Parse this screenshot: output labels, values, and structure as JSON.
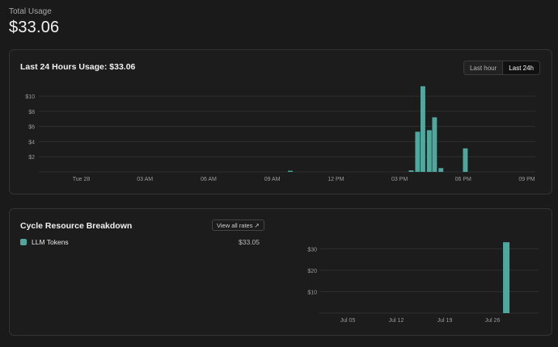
{
  "header": {
    "label": "Total Usage",
    "value": "$33.06"
  },
  "usage_card": {
    "title": "Last 24 Hours Usage: $33.06",
    "toggle": {
      "options": [
        "Last hour",
        "Last 24h"
      ],
      "active": "Last 24h"
    }
  },
  "breakdown_card": {
    "title": "Cycle Resource Breakdown",
    "view_rates_label": "View all rates",
    "resources": [
      {
        "name": "LLM Tokens",
        "value": "$33.05",
        "color": "#4fa89e"
      }
    ]
  },
  "colors": {
    "bar": "#4fa89e",
    "grid": "#2e2e2e",
    "tick": "#9a9a9a"
  },
  "chart_data": [
    {
      "type": "bar",
      "title": "",
      "x_tick_labels": [
        "Tue 28",
        "03 AM",
        "06 AM",
        "09 AM",
        "12 PM",
        "03 PM",
        "06 PM",
        "09 PM"
      ],
      "y_tick_labels": [
        "$2",
        "$4",
        "$6",
        "$8",
        "$10"
      ],
      "ylim": [
        0,
        11.5
      ],
      "x_unit": "hours since Tue 28 00:00",
      "xlim": [
        -2,
        21.4
      ],
      "bar_width_hours": 0.25,
      "points": [
        {
          "x": 9.85,
          "y": 0.15
        },
        {
          "x": 15.55,
          "y": 0.2
        },
        {
          "x": 15.85,
          "y": 5.3
        },
        {
          "x": 16.1,
          "y": 11.3
        },
        {
          "x": 16.4,
          "y": 5.5
        },
        {
          "x": 16.65,
          "y": 7.2
        },
        {
          "x": 16.95,
          "y": 0.5
        },
        {
          "x": 18.1,
          "y": 3.1
        }
      ]
    },
    {
      "type": "bar",
      "title": "",
      "x_tick_labels": [
        "Jul 05",
        "Jul 12",
        "Jul 19",
        "Jul 26"
      ],
      "y_tick_labels": [
        "$10",
        "$20",
        "$30"
      ],
      "ylim": [
        0,
        35
      ],
      "points": [
        {
          "date": "Jul 28",
          "y": 33.05
        }
      ]
    }
  ]
}
